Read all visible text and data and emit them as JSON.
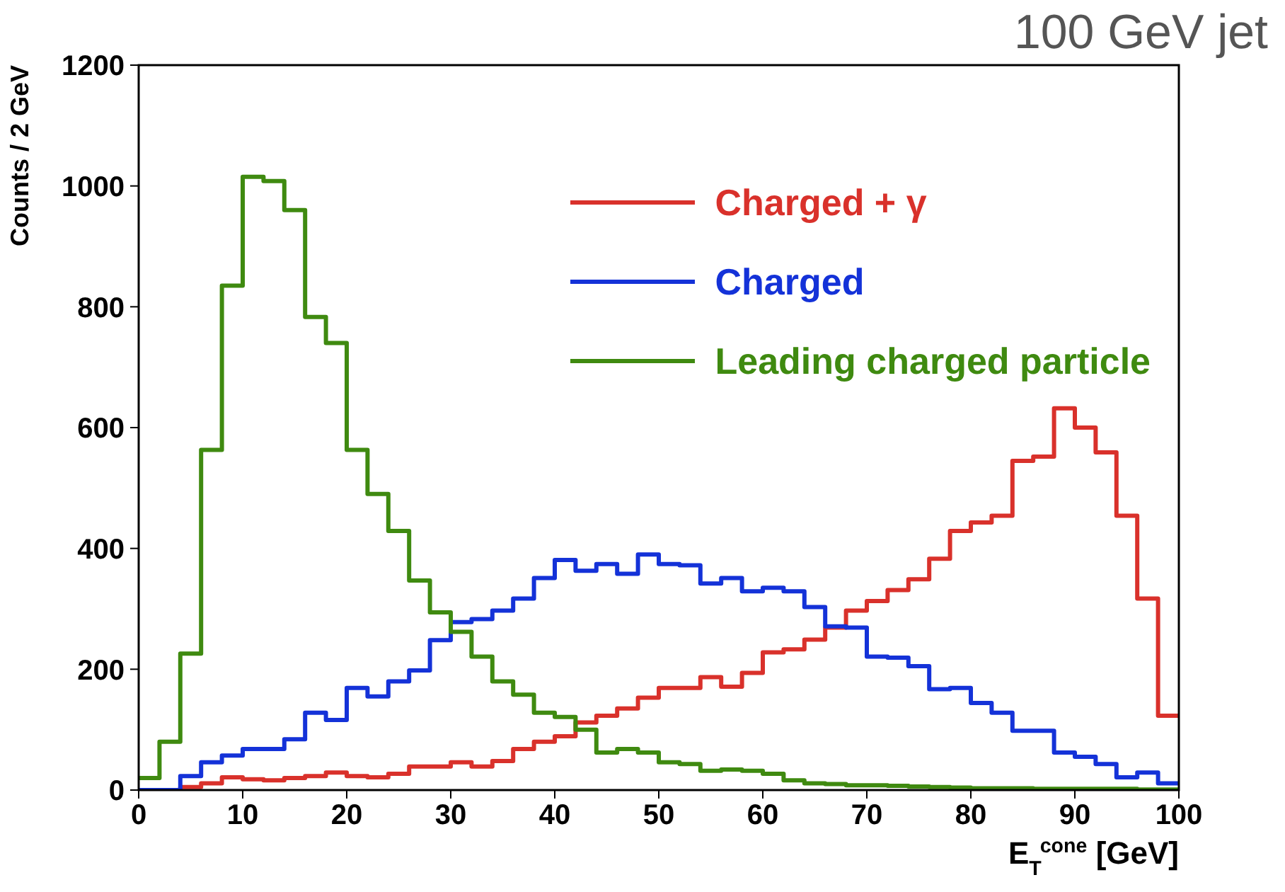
{
  "chart_data": {
    "type": "histogram",
    "title": "100 GeV jet",
    "xlabel": "E$_{T}$$^{cone}$ [GeV]",
    "ylabel": "Counts / 2 GeV",
    "bins": [
      0,
      2,
      4,
      6,
      8,
      10,
      12,
      14,
      16,
      18,
      20,
      22,
      24,
      26,
      28,
      30,
      32,
      34,
      36,
      38,
      40,
      42,
      44,
      46,
      48,
      50,
      52,
      54,
      56,
      58,
      60,
      62,
      64,
      66,
      68,
      70,
      72,
      74,
      76,
      78,
      80,
      82,
      84,
      86,
      88,
      90,
      92,
      94,
      96,
      98,
      100
    ],
    "series": [
      {
        "name": "Charged + γ",
        "color": "#d9312b",
        "values": [
          0,
          0,
          5,
          11,
          21,
          18,
          16,
          20,
          23,
          29,
          23,
          21,
          27,
          39,
          39,
          46,
          39,
          48,
          68,
          80,
          89,
          112,
          123,
          135,
          153,
          169,
          169,
          187,
          171,
          194,
          228,
          233,
          249,
          269,
          297,
          313,
          331,
          349,
          383,
          429,
          443,
          454,
          545,
          552,
          632,
          600,
          559,
          454,
          317,
          123
        ]
      },
      {
        "name": "Charged",
        "color": "#1432d8",
        "values": [
          0,
          0,
          23,
          46,
          57,
          68,
          68,
          84,
          128,
          116,
          169,
          155,
          180,
          198,
          248,
          278,
          283,
          297,
          317,
          351,
          381,
          363,
          374,
          358,
          390,
          374,
          372,
          342,
          351,
          329,
          335,
          329,
          303,
          271,
          269,
          221,
          219,
          205,
          167,
          169,
          144,
          128,
          98,
          98,
          62,
          55,
          43,
          21,
          29,
          11
        ]
      },
      {
        "name": "Leading charged particle",
        "color": "#3f8a10",
        "values": [
          20,
          80,
          226,
          563,
          835,
          1015,
          1008,
          960,
          783,
          740,
          563,
          490,
          429,
          347,
          294,
          262,
          221,
          180,
          158,
          128,
          121,
          100,
          62,
          68,
          62,
          46,
          43,
          32,
          34,
          32,
          27,
          16,
          11,
          10,
          8,
          8,
          7,
          6,
          5,
          4,
          3,
          3,
          3,
          2,
          2,
          2,
          2,
          2,
          1,
          1
        ]
      }
    ],
    "xlim": [
      0,
      100
    ],
    "xticks": [
      0,
      10,
      20,
      30,
      40,
      50,
      60,
      70,
      80,
      90,
      100
    ],
    "ylim": [
      0,
      1200
    ],
    "yticks": [
      0,
      200,
      400,
      600,
      800,
      1000,
      1200
    ],
    "grid": false,
    "legend": "top right"
  }
}
